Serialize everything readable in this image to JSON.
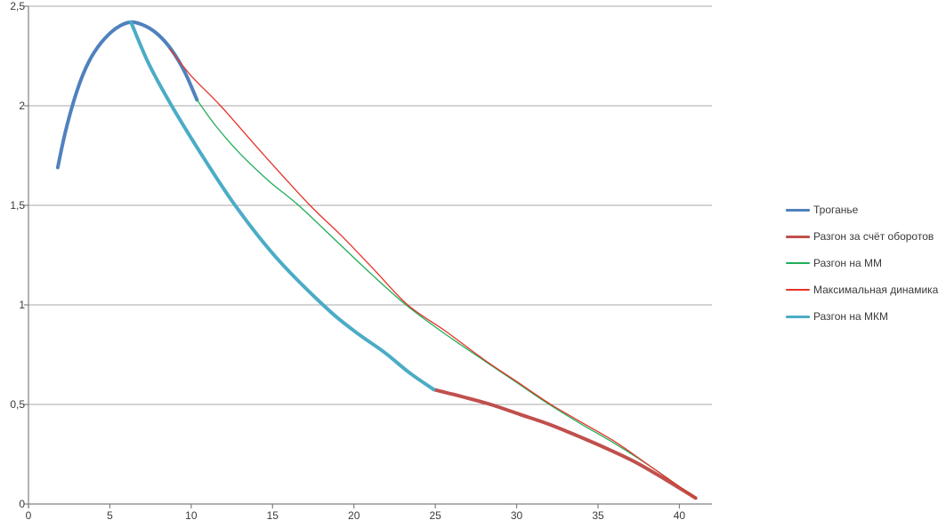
{
  "chart_data": {
    "type": "line",
    "title": "",
    "xlabel": "",
    "ylabel": "",
    "grid": true,
    "legend_position": "right",
    "x_axis": {
      "min": 0,
      "max": 42,
      "ticks": [
        {
          "v": 0,
          "label": "0"
        },
        {
          "v": 5,
          "label": "5"
        },
        {
          "v": 10,
          "label": "10"
        },
        {
          "v": 15,
          "label": "15"
        },
        {
          "v": 20,
          "label": "20"
        },
        {
          "v": 25,
          "label": "25"
        },
        {
          "v": 30,
          "label": "30"
        },
        {
          "v": 35,
          "label": "35"
        },
        {
          "v": 40,
          "label": "40"
        }
      ]
    },
    "y_axis": {
      "min": 0,
      "max": 2.5,
      "ticks": [
        {
          "v": 0,
          "label": "0"
        },
        {
          "v": 0.5,
          "label": "0,5"
        },
        {
          "v": 1,
          "label": "1"
        },
        {
          "v": 1.5,
          "label": "1,5"
        },
        {
          "v": 2,
          "label": "2"
        },
        {
          "v": 2.5,
          "label": "2,5"
        }
      ]
    },
    "series": [
      {
        "name": "Троганье",
        "color": "#4F81BD",
        "width": 4,
        "points": [
          [
            1.8,
            1.69
          ],
          [
            2.3,
            1.88
          ],
          [
            3.0,
            2.08
          ],
          [
            3.7,
            2.22
          ],
          [
            4.5,
            2.32
          ],
          [
            5.4,
            2.39
          ],
          [
            6.3,
            2.42
          ],
          [
            7.2,
            2.4
          ],
          [
            8.0,
            2.355
          ],
          [
            8.8,
            2.28
          ],
          [
            9.6,
            2.17
          ],
          [
            10.35,
            2.03
          ]
        ]
      },
      {
        "name": "Разгон за счёт оборотов",
        "color": "#C0504D",
        "width": 4,
        "points": [
          [
            24.9,
            0.575
          ],
          [
            26.6,
            0.54
          ],
          [
            28.4,
            0.5
          ],
          [
            30.2,
            0.45
          ],
          [
            32.0,
            0.4
          ],
          [
            33.8,
            0.34
          ],
          [
            35.5,
            0.28
          ],
          [
            37.3,
            0.21
          ],
          [
            39.1,
            0.125
          ],
          [
            41.0,
            0.03
          ]
        ]
      },
      {
        "name": "Разгон на ММ",
        "color": "#1FAE5A",
        "width": 1.3,
        "points": [
          [
            10.35,
            2.03
          ],
          [
            11.5,
            1.9
          ],
          [
            13.0,
            1.76
          ],
          [
            14.8,
            1.62
          ],
          [
            16.6,
            1.5
          ],
          [
            18.8,
            1.33
          ],
          [
            21.0,
            1.16
          ],
          [
            23.2,
            1.0
          ],
          [
            25.5,
            0.86
          ],
          [
            28.0,
            0.72
          ],
          [
            30.0,
            0.61
          ],
          [
            32.0,
            0.5
          ],
          [
            34.0,
            0.4
          ],
          [
            36.0,
            0.305
          ],
          [
            38.2,
            0.19
          ],
          [
            41.0,
            0.03
          ]
        ]
      },
      {
        "name": "Максимальная динамика",
        "color": "#E63227",
        "width": 1.3,
        "points": [
          [
            8.7,
            2.285
          ],
          [
            10.0,
            2.15
          ],
          [
            11.8,
            2.0
          ],
          [
            14.5,
            1.75
          ],
          [
            17.3,
            1.5
          ],
          [
            19.2,
            1.35
          ],
          [
            21.2,
            1.18
          ],
          [
            23.3,
            1.0
          ],
          [
            25.6,
            0.87
          ],
          [
            28.0,
            0.725
          ],
          [
            30.0,
            0.615
          ],
          [
            32.1,
            0.5
          ],
          [
            34.1,
            0.405
          ],
          [
            36.1,
            0.31
          ],
          [
            38.2,
            0.19
          ],
          [
            41.0,
            0.03
          ]
        ]
      },
      {
        "name": "Разгон на МКМ",
        "color": "#4BACC6",
        "width": 4,
        "points": [
          [
            6.3,
            2.42
          ],
          [
            7.4,
            2.21
          ],
          [
            8.8,
            2.0
          ],
          [
            10.6,
            1.76
          ],
          [
            12.7,
            1.5
          ],
          [
            15.2,
            1.24
          ],
          [
            18.1,
            1.0
          ],
          [
            20.0,
            0.87
          ],
          [
            21.9,
            0.76
          ],
          [
            23.4,
            0.66
          ],
          [
            24.9,
            0.575
          ]
        ]
      }
    ]
  },
  "colors": {
    "grid": "#a8a8a8",
    "axis": "#808080",
    "text": "#3a3a3a",
    "background": "#ffffff"
  }
}
